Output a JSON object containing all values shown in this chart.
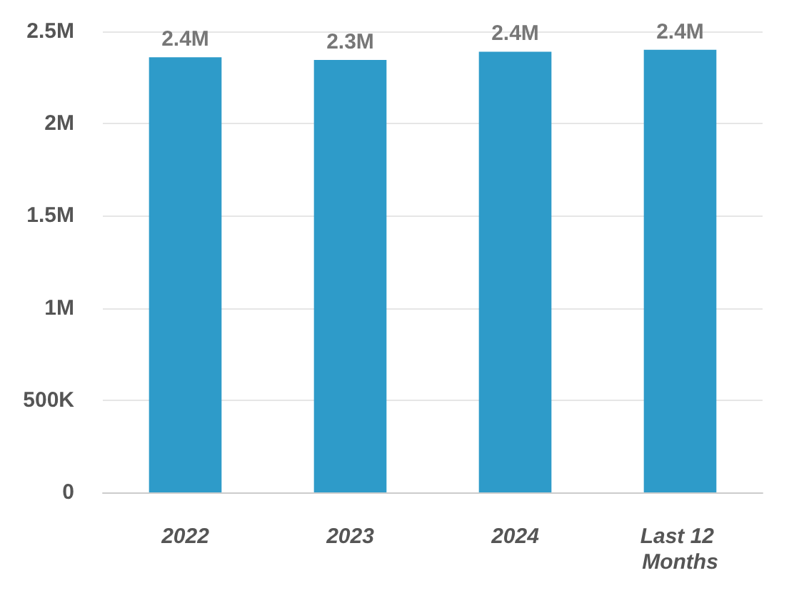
{
  "chart_data": {
    "type": "bar",
    "categories": [
      "2022",
      "2023",
      "2024",
      "Last 12 Months"
    ],
    "values": [
      2360000,
      2345000,
      2390000,
      2400000
    ],
    "color": "#2e9bc9",
    "value_labels": [
      "2.4M",
      "2.3M",
      "2.4M",
      "2.4M"
    ],
    "ylim": [
      0,
      2500000
    ],
    "yticks": [
      {
        "value": 0,
        "label": "0"
      },
      {
        "value": 500000,
        "label": "500K"
      },
      {
        "value": 1000000,
        "label": "1M"
      },
      {
        "value": 1500000,
        "label": "1.5M"
      },
      {
        "value": 2000000,
        "label": "2M"
      },
      {
        "value": 2500000,
        "label": "2.5M"
      }
    ],
    "grid": "y"
  }
}
